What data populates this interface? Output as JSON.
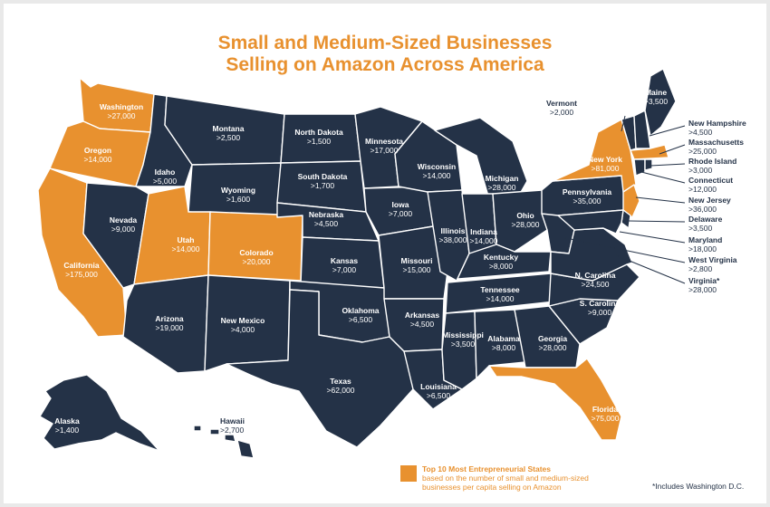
{
  "title": {
    "line1": "Small and Medium-Sized Businesses",
    "line2": "Selling on Amazon Across America"
  },
  "colors": {
    "state": "#243247",
    "highlight": "#e8912f",
    "background": "#ffffff"
  },
  "states": {
    "wa": {
      "name": "Washington",
      "value": ">27,000",
      "highlight": true
    },
    "or": {
      "name": "Oregon",
      "value": ">14,000",
      "highlight": true
    },
    "ca": {
      "name": "California",
      "value": ">175,000",
      "highlight": true
    },
    "nv": {
      "name": "Nevada",
      "value": ">9,000"
    },
    "id": {
      "name": "Idaho",
      "value": ">5,000"
    },
    "mt": {
      "name": "Montana",
      "value": ">2,500"
    },
    "wy": {
      "name": "Wyoming",
      "value": ">1,600"
    },
    "ut": {
      "name": "Utah",
      "value": ">14,000",
      "highlight": true
    },
    "co": {
      "name": "Colorado",
      "value": ">20,000",
      "highlight": true
    },
    "az": {
      "name": "Arizona",
      "value": ">19,000"
    },
    "nm": {
      "name": "New Mexico",
      "value": ">4,000"
    },
    "nd": {
      "name": "North Dakota",
      "value": ">1,500"
    },
    "sd": {
      "name": "South Dakota",
      "value": ">1,700"
    },
    "ne": {
      "name": "Nebraska",
      "value": ">4,500"
    },
    "ks": {
      "name": "Kansas",
      "value": ">7,000"
    },
    "ok": {
      "name": "Oklahoma",
      "value": ">6,500"
    },
    "tx": {
      "name": "Texas",
      "value": ">62,000"
    },
    "mn": {
      "name": "Minnesota",
      "value": ">17,000"
    },
    "ia": {
      "name": "Iowa",
      "value": ">7,000"
    },
    "mo": {
      "name": "Missouri",
      "value": ">15,000"
    },
    "ar": {
      "name": "Arkansas",
      "value": ">4,500"
    },
    "la": {
      "name": "Louisiana",
      "value": ">6,500"
    },
    "wi": {
      "name": "Wisconsin",
      "value": ">14,000"
    },
    "il": {
      "name": "Illinois",
      "value": ">38,000"
    },
    "mi": {
      "name": "Michigan",
      "value": ">28,000"
    },
    "in": {
      "name": "Indiana",
      "value": ">14,000"
    },
    "oh": {
      "name": "Ohio",
      "value": ">28,000"
    },
    "ky": {
      "name": "Kentucky",
      "value": ">8,000"
    },
    "tn": {
      "name": "Tennessee",
      "value": ">14,000"
    },
    "ms": {
      "name": "Mississippi",
      "value": ">3,500"
    },
    "al": {
      "name": "Alabama",
      "value": ">8,000"
    },
    "ga": {
      "name": "Georgia",
      "value": ">28,000"
    },
    "fl": {
      "name": "Florida",
      "value": ">75,000",
      "highlight": true
    },
    "sc": {
      "name": "S. Carolina",
      "value": ">9,000"
    },
    "nc": {
      "name": "N. Carolina",
      "value": ">24,500"
    },
    "pa": {
      "name": "Pennsylvania",
      "value": ">35,000"
    },
    "ny": {
      "name": "New York",
      "value": ">81,000",
      "highlight": true
    },
    "me": {
      "name": "Maine",
      "value": ">3,500"
    },
    "vt": {
      "name": "Vermont",
      "value": ">2,000"
    },
    "nh": {
      "name": "New Hampshire",
      "value": ">4,500"
    },
    "ma": {
      "name": "Massachusetts",
      "value": ">25,000",
      "highlight": true
    },
    "ri": {
      "name": "Rhode Island",
      "value": ">3,000"
    },
    "ct": {
      "name": "Connecticut",
      "value": ">12,000"
    },
    "nj": {
      "name": "New Jersey",
      "value": ">36,000",
      "highlight": true
    },
    "de": {
      "name": "Delaware",
      "value": ">3,500"
    },
    "md": {
      "name": "Maryland",
      "value": ">18,000"
    },
    "wv": {
      "name": "West Virginia",
      "value": ">2,800"
    },
    "va": {
      "name": "Virginia*",
      "value": ">28,000"
    },
    "ak": {
      "name": "Alaska",
      "value": ">1,400"
    },
    "hi": {
      "name": "Hawaii",
      "value": ">2,700"
    }
  },
  "legend": {
    "title": "Top 10 Most Entrepreneurial States",
    "line1": "based on the number of small and medium-sized",
    "line2": "businesses per capita selling on Amazon"
  },
  "footnote": "*Includes Washington D.C."
}
